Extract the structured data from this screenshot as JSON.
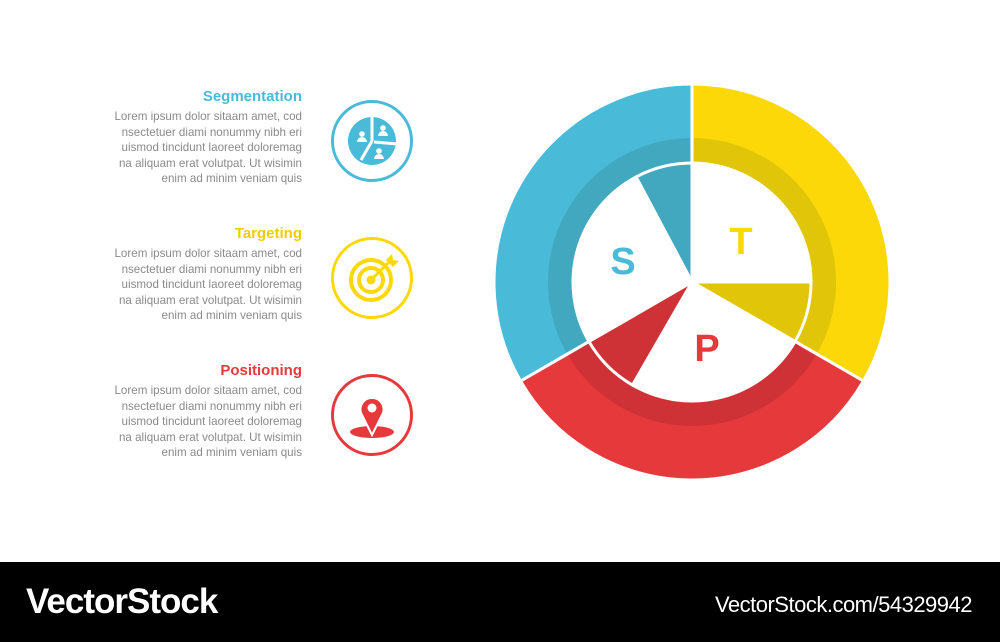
{
  "colors": {
    "segmentation": "#49bbd8",
    "targeting": "#fcd808",
    "positioning": "#e6393c",
    "segmentation_dark": "#42a8c0",
    "targeting_dark": "#e1c508",
    "positioning_dark": "#cf3236",
    "body_text": "#8a8a8a"
  },
  "items": [
    {
      "title": "Segmentation",
      "body": "Lorem ipsum dolor sitaam amet, cod\nnsectetuer diami nonummy  nibh eri\nuismod tincidunt laoreet doloremag\nna aliquam erat volutpat. Ut wisimin\nenim ad minim veniam quis",
      "icon": "pie-chart-users-icon"
    },
    {
      "title": "Targeting",
      "body": "Lorem ipsum dolor sitaam amet, cod\nnsectetuer diami nonummy  nibh eri\nuismod tincidunt laoreet doloremag\nna aliquam erat volutpat. Ut wisimin\nenim ad minim veniam quis",
      "icon": "target-arrow-icon"
    },
    {
      "title": "Positioning",
      "body": "Lorem ipsum dolor sitaam amet, cod\nnsectetuer diami nonummy  nibh eri\nuismod tincidunt laoreet doloremag\nna aliquam erat volutpat. Ut wisimin\nenim ad minim veniam quis",
      "icon": "map-pin-icon"
    }
  ],
  "wheel": {
    "letters": {
      "s": "S",
      "t": "T",
      "p": "P"
    }
  },
  "footer": {
    "brand": "VectorStock",
    "url": "VectorStock.com/54329942"
  }
}
